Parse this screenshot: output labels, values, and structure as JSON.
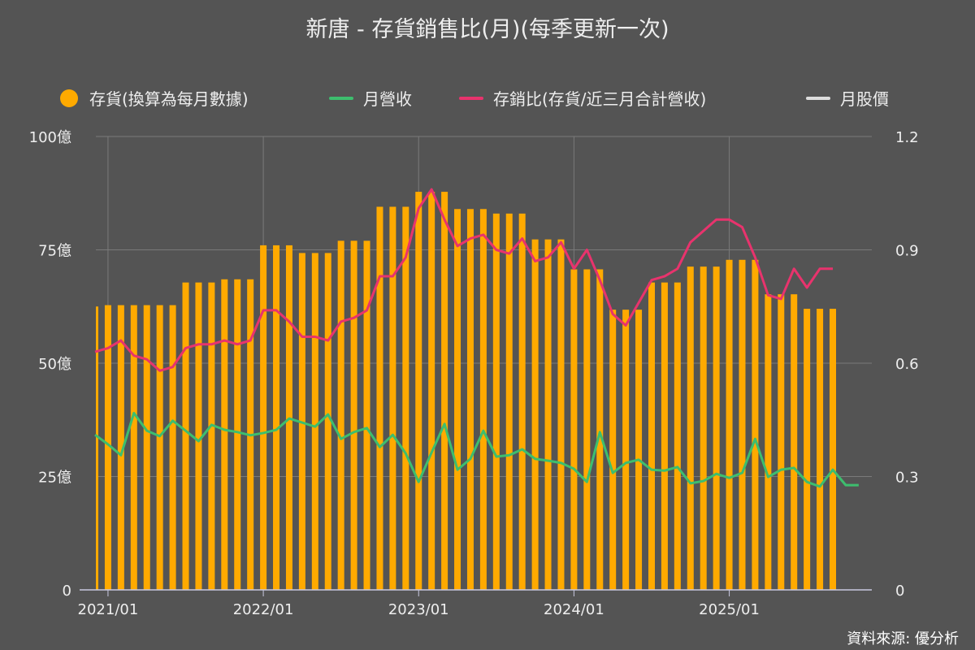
{
  "title": "新唐 - 存貨銷售比(月)(每季更新一次)",
  "legend": [
    {
      "label": "存貨(換算為每月數據)",
      "color": "#FFAA00",
      "shape": "dot"
    },
    {
      "label": "月營收",
      "color": "#3DBE6E",
      "shape": "line"
    },
    {
      "label": "存銷比(存貨/近三月合計營收)",
      "color": "#E8336D",
      "shape": "line"
    },
    {
      "label": "月股價",
      "color": "#dddddd",
      "shape": "line"
    }
  ],
  "source": "資料來源: 優分析",
  "chart_data": {
    "type": "bar+line",
    "title": "新唐 - 存貨銷售比(月)(每季更新一次)",
    "start_month": "2020/12",
    "x_ticks": [
      "2021/01",
      "2022/01",
      "2023/01",
      "2024/01",
      "2025/01"
    ],
    "y_left": {
      "ticks": [
        "0",
        "25億",
        "50億",
        "75億",
        "100億"
      ],
      "range": [
        0,
        100
      ]
    },
    "y_right": {
      "ticks": [
        "0",
        "0.3",
        "0.6",
        "0.9",
        "1.2"
      ],
      "range": [
        0,
        1.2
      ]
    },
    "grid": true,
    "legend_position": "top",
    "inventory": [
      62.5,
      62.8,
      62.8,
      62.8,
      62.8,
      62.8,
      62.8,
      67.8,
      67.8,
      67.8,
      68.5,
      68.5,
      68.5,
      76,
      76,
      76,
      74.3,
      74.3,
      74.3,
      77,
      77,
      77,
      84.5,
      84.5,
      84.5,
      87.8,
      87.8,
      87.8,
      84,
      84,
      84,
      83,
      83,
      83,
      77.3,
      77.3,
      77.3,
      70.7,
      70.7,
      70.7,
      61.8,
      61.8,
      61.8,
      67.8,
      67.8,
      67.8,
      71.3,
      71.3,
      71.3,
      72.8,
      72.8,
      72.8,
      65.2,
      65.2,
      65.2,
      62,
      62,
      62
    ],
    "revenue": [
      34.2,
      32.1,
      29.7,
      39.0,
      35.1,
      33.9,
      37.3,
      35.1,
      32.8,
      36.4,
      35.3,
      34.8,
      34.1,
      34.6,
      35.3,
      37.8,
      36.9,
      36.0,
      38.7,
      33.3,
      34.8,
      35.7,
      31.5,
      34.2,
      30.1,
      23.8,
      30.3,
      36.6,
      26.5,
      28.9,
      35.1,
      29.4,
      29.7,
      31.0,
      28.9,
      28.5,
      28.0,
      26.7,
      23.8,
      34.8,
      25.8,
      28.0,
      28.7,
      26.5,
      26.3,
      27.1,
      23.5,
      24.0,
      25.6,
      24.7,
      25.8,
      33.3,
      24.9,
      26.5,
      26.9,
      23.8,
      22.8,
      26.5,
      23.1,
      23.1
    ],
    "ratio": [
      0.63,
      0.64,
      0.66,
      0.62,
      0.61,
      0.58,
      0.59,
      0.64,
      0.65,
      0.65,
      0.66,
      0.65,
      0.66,
      0.74,
      0.74,
      0.71,
      0.67,
      0.67,
      0.66,
      0.71,
      0.72,
      0.74,
      0.83,
      0.83,
      0.88,
      1.01,
      1.06,
      0.98,
      0.91,
      0.93,
      0.94,
      0.9,
      0.89,
      0.93,
      0.87,
      0.88,
      0.92,
      0.85,
      0.9,
      0.82,
      0.73,
      0.7,
      0.76,
      0.82,
      0.83,
      0.85,
      0.92,
      0.95,
      0.98,
      0.98,
      0.96,
      0.88,
      0.78,
      0.77,
      0.85,
      0.8,
      0.85,
      0.85
    ]
  }
}
